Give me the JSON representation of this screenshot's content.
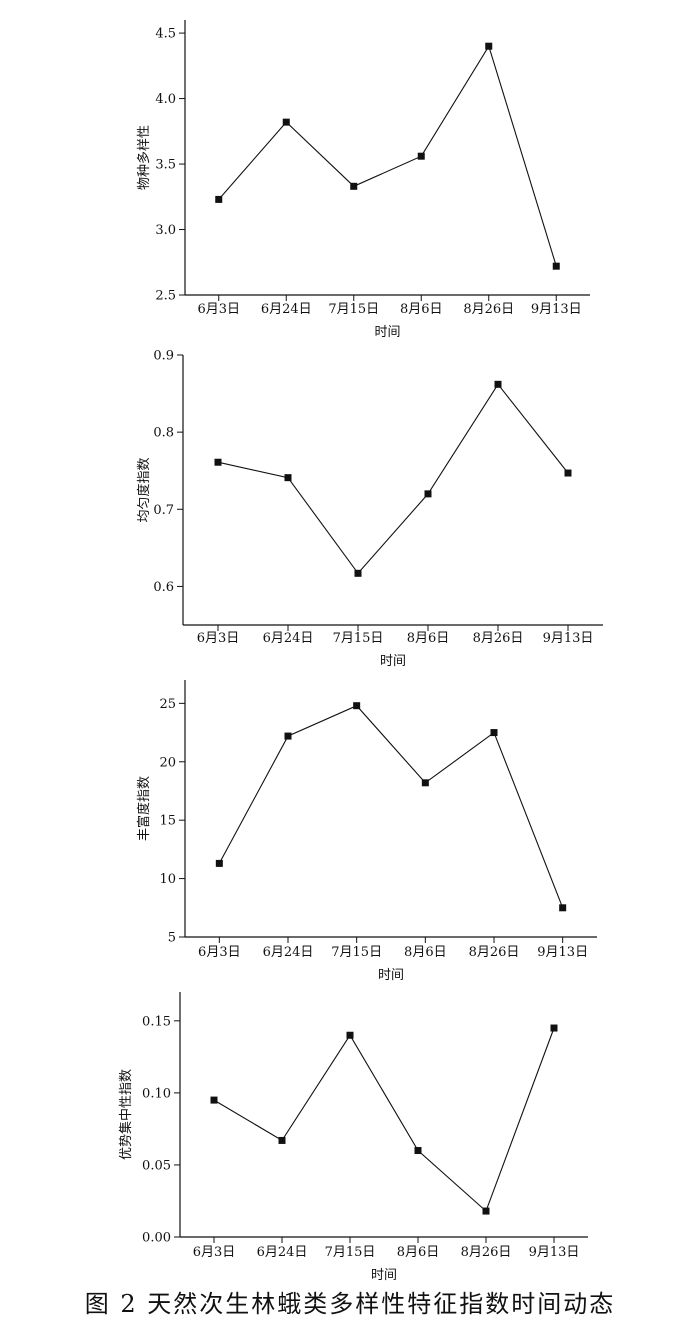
{
  "caption": "图 2   天然次生林蛾类多样性特征指数时间动态",
  "chart_data": [
    {
      "type": "line",
      "categories": [
        "6月3日",
        "6月24日",
        "7月15日",
        "8月6日",
        "8月26日",
        "9月13日"
      ],
      "series": [
        {
          "values": [
            3.23,
            3.82,
            3.33,
            3.56,
            4.4,
            2.72
          ]
        }
      ],
      "xlabel": "时间",
      "ylabel": "物种多样性",
      "ylim": [
        2.5,
        4.6
      ],
      "yticks": [
        "2.5",
        "3.0",
        "3.5",
        "4.0",
        "4.5"
      ],
      "grid": false
    },
    {
      "type": "line",
      "categories": [
        "6月3日",
        "6月24日",
        "7月15日",
        "8月6日",
        "8月26日",
        "9月13日"
      ],
      "series": [
        {
          "values": [
            0.761,
            0.741,
            0.617,
            0.72,
            0.862,
            0.747
          ]
        }
      ],
      "xlabel": "时间",
      "ylabel": "均匀度指数",
      "ylim": [
        0.55,
        0.9
      ],
      "yticks": [
        "0.6",
        "0.7",
        "0.8",
        "0.9"
      ],
      "grid": false
    },
    {
      "type": "line",
      "categories": [
        "6月3日",
        "6月24日",
        "7月15日",
        "8月6日",
        "8月26日",
        "9月13日"
      ],
      "series": [
        {
          "values": [
            11.3,
            22.2,
            24.8,
            18.2,
            22.5,
            7.5
          ]
        }
      ],
      "xlabel": "时间",
      "ylabel": "丰富度指数",
      "ylim": [
        5,
        27
      ],
      "yticks": [
        "5",
        "10",
        "15",
        "20",
        "25"
      ],
      "grid": false
    },
    {
      "type": "line",
      "categories": [
        "6月3日",
        "6月24日",
        "7月15日",
        "8月6日",
        "8月26日",
        "9月13日"
      ],
      "series": [
        {
          "values": [
            0.095,
            0.067,
            0.14,
            0.06,
            0.018,
            0.145
          ]
        }
      ],
      "xlabel": "时间",
      "ylabel": "优势集中性指数",
      "ylim": [
        0.0,
        0.17
      ],
      "yticks": [
        "0.00",
        "0.05",
        "0.10",
        "0.15"
      ],
      "grid": false
    }
  ]
}
